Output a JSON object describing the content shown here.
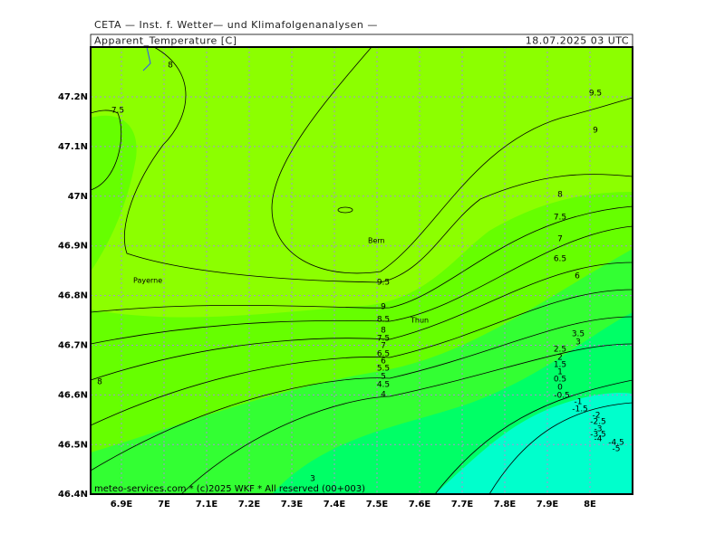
{
  "header": {
    "source": "CETA — Inst. f. Wetter— und Klimafolgenanalysen —",
    "field": "Apparent_Temperature [C]",
    "time": "18.07.2025 03 UTC"
  },
  "map": {
    "lon_labels": [
      "6.9E",
      "7E",
      "7.1E",
      "7.2E",
      "7.3E",
      "7.4E",
      "7.5E",
      "7.6E",
      "7.7E",
      "7.8E",
      "7.9E",
      "8E"
    ],
    "lat_labels": [
      "47.2N",
      "47.1N",
      "47N",
      "46.9N",
      "46.8N",
      "46.7N",
      "46.6N",
      "46.5N",
      "46.4N"
    ],
    "places": [
      "Bern",
      "Payerne",
      "Thun"
    ],
    "contour_labels": [
      "9.5",
      "9",
      "8",
      "7.5",
      "7",
      "6.5",
      "6",
      "3.5",
      "3",
      "2.5",
      "2",
      "1.5",
      "1",
      "0.5",
      "0",
      "-0.5",
      "-1",
      "-1.5",
      "-2",
      "-2.5",
      "-3",
      "-3.5",
      "-4",
      "-4.5",
      "-5",
      "9.5",
      "9",
      "8.5",
      "8",
      "7.5",
      "7",
      "6.5",
      "6",
      "5.5",
      "5",
      "4.5",
      "4",
      "8",
      "7.5",
      "8",
      "3"
    ],
    "footer": "meteo-services.com * (c)2025 WKF * All reserved (00+003)"
  }
}
